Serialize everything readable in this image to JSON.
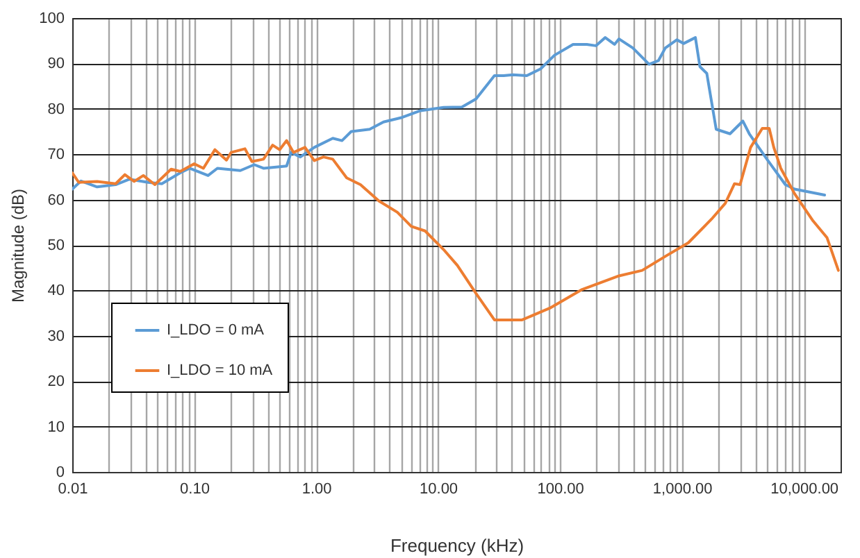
{
  "chart_data": {
    "type": "line",
    "xlabel": "Frequency (kHz)",
    "ylabel": "Magnitude (dB)",
    "log": "x",
    "grid": true,
    "legend": "bottom left",
    "line_style": "solid",
    "marker": "none",
    "xlim": [
      0.01,
      20000
    ],
    "xticks": [
      0.01,
      {
        "value": 0.1,
        "label": "0.10"
      },
      {
        "value": 1,
        "label": "1.00"
      },
      {
        "value": 10,
        "label": "10.00"
      },
      {
        "value": 100,
        "label": "100.00"
      },
      {
        "value": 1000,
        "label": "1,000.00"
      },
      {
        "value": 10000,
        "label": "10,000.00"
      }
    ],
    "ylim": [
      0,
      100
    ],
    "yticks": [
      0,
      10,
      20,
      30,
      40,
      50,
      60,
      70,
      80,
      90,
      100
    ],
    "series": [
      {
        "name": "I_LDO = 0 mA",
        "color": "#5b9bd5",
        "x": [
          0.01,
          0.0118,
          0.016,
          0.0227,
          0.0295,
          0.0418,
          0.0543,
          0.0769,
          0.0916,
          0.13,
          0.155,
          0.239,
          0.311,
          0.37,
          0.573,
          0.624,
          0.743,
          0.966,
          1.37,
          1.63,
          1.94,
          2.75,
          3.57,
          5.07,
          7.18,
          11.1,
          15.7,
          20.5,
          29.0,
          34.5,
          41.1,
          53.4,
          69.3,
          90.1,
          128,
          166,
          197,
          235,
          280,
          305,
          396,
          538,
          641,
          731,
          908,
          1035,
          1290,
          1405,
          1600,
          1910,
          2480,
          3160,
          3570,
          4980,
          7050,
          8400,
          14800
        ],
        "values": [
          62.3,
          64.1,
          62.8,
          63.3,
          64.5,
          63.8,
          63.5,
          65.9,
          66.9,
          65.3,
          66.9,
          66.4,
          67.7,
          66.9,
          67.4,
          70.4,
          69.4,
          71.5,
          73.5,
          73.0,
          75.0,
          75.5,
          77.1,
          78.1,
          79.6,
          80.3,
          80.4,
          82.2,
          87.3,
          87.3,
          87.5,
          87.3,
          88.8,
          91.8,
          94.2,
          94.2,
          93.9,
          95.7,
          94.2,
          95.4,
          93.4,
          89.8,
          90.6,
          93.4,
          95.2,
          94.4,
          95.7,
          89.3,
          87.8,
          75.5,
          74.5,
          77.3,
          74.5,
          68.9,
          63.3,
          62.3,
          61.0
        ]
      },
      {
        "name": "I_LDO = 10 mA",
        "color": "#ed7d31",
        "x": [
          0.01,
          0.0113,
          0.016,
          0.0227,
          0.027,
          0.0322,
          0.0383,
          0.0476,
          0.0647,
          0.0769,
          0.1,
          0.119,
          0.148,
          0.184,
          0.201,
          0.261,
          0.297,
          0.37,
          0.44,
          0.502,
          0.573,
          0.652,
          0.811,
          0.966,
          1.15,
          1.37,
          1.78,
          2.31,
          3.27,
          4.64,
          6.03,
          7.83,
          11.1,
          14.4,
          20.5,
          29.0,
          37.7,
          48.9,
          82.6,
          152,
          305,
          472,
          731,
          1130,
          1750,
          2270,
          2700,
          3000,
          3660,
          4560,
          5200,
          5670,
          6470,
          8400,
          11900,
          15500,
          19200
        ],
        "values": [
          65.9,
          63.8,
          64.0,
          63.5,
          65.5,
          64.0,
          65.3,
          63.3,
          66.7,
          66.2,
          67.9,
          66.9,
          71.0,
          68.7,
          70.4,
          71.2,
          68.4,
          68.9,
          72.0,
          71.0,
          73.0,
          70.4,
          71.5,
          68.6,
          69.4,
          68.9,
          64.8,
          63.3,
          59.7,
          57.2,
          54.1,
          53.1,
          49.0,
          45.5,
          39.3,
          33.5,
          33.5,
          33.5,
          36.1,
          40.2,
          43.2,
          44.4,
          47.5,
          50.5,
          55.7,
          59.2,
          63.5,
          63.3,
          71.5,
          75.7,
          75.7,
          71.5,
          66.9,
          61.3,
          55.3,
          51.6,
          44.4
        ]
      }
    ]
  }
}
